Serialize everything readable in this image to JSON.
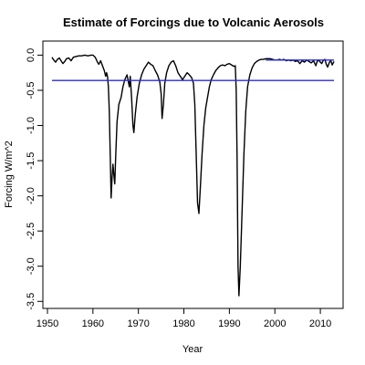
{
  "chart_data": {
    "type": "line",
    "title": "Estimate of Forcings due to Volcanic Aerosols",
    "xlabel": "Year",
    "ylabel": "Forcing W/m^2",
    "xlim": [
      1949,
      2015
    ],
    "ylim": [
      -3.6,
      0.2
    ],
    "x_ticks": [
      1950,
      1960,
      1970,
      1980,
      1990,
      2000,
      2010
    ],
    "y_ticks": [
      0.0,
      -0.5,
      -1.0,
      -1.5,
      -2.0,
      -2.5,
      -3.0,
      -3.5
    ],
    "y_tick_labels": [
      "0.0",
      "-0.5",
      "-1.0",
      "-1.5",
      "-2.0",
      "-2.5",
      "-3.0",
      "-3.5"
    ],
    "grid": false,
    "legend": "none",
    "series": [
      {
        "color": "#000000",
        "style": "solid",
        "points": [
          [
            1951.0,
            -0.03
          ],
          [
            1951.4,
            -0.07
          ],
          [
            1951.8,
            -0.1
          ],
          [
            1952.2,
            -0.06
          ],
          [
            1952.6,
            -0.04
          ],
          [
            1953.0,
            -0.08
          ],
          [
            1953.4,
            -0.12
          ],
          [
            1953.8,
            -0.09
          ],
          [
            1954.2,
            -0.05
          ],
          [
            1954.7,
            -0.04
          ],
          [
            1955.2,
            -0.08
          ],
          [
            1955.7,
            -0.03
          ],
          [
            1956.3,
            -0.02
          ],
          [
            1956.9,
            -0.01
          ],
          [
            1957.5,
            -0.01
          ],
          [
            1958.2,
            0.0
          ],
          [
            1958.9,
            -0.01
          ],
          [
            1959.6,
            0.0
          ],
          [
            1960.0,
            0.0
          ],
          [
            1960.5,
            -0.03
          ],
          [
            1961.0,
            -0.1
          ],
          [
            1961.3,
            -0.13
          ],
          [
            1961.7,
            -0.08
          ],
          [
            1962.1,
            -0.15
          ],
          [
            1962.5,
            -0.22
          ],
          [
            1962.8,
            -0.3
          ],
          [
            1963.0,
            -0.25
          ],
          [
            1963.2,
            -0.3
          ],
          [
            1963.4,
            -0.45
          ],
          [
            1963.6,
            -0.8
          ],
          [
            1963.8,
            -1.4
          ],
          [
            1964.0,
            -2.03
          ],
          [
            1964.2,
            -1.75
          ],
          [
            1964.4,
            -1.55
          ],
          [
            1964.6,
            -1.7
          ],
          [
            1964.8,
            -1.83
          ],
          [
            1965.0,
            -1.45
          ],
          [
            1965.3,
            -0.95
          ],
          [
            1965.7,
            -0.7
          ],
          [
            1966.2,
            -0.6
          ],
          [
            1966.6,
            -0.45
          ],
          [
            1967.0,
            -0.35
          ],
          [
            1967.5,
            -0.28
          ],
          [
            1967.8,
            -0.38
          ],
          [
            1968.0,
            -0.45
          ],
          [
            1968.2,
            -0.3
          ],
          [
            1968.5,
            -0.6
          ],
          [
            1968.8,
            -1.0
          ],
          [
            1969.0,
            -1.1
          ],
          [
            1969.3,
            -0.85
          ],
          [
            1969.7,
            -0.6
          ],
          [
            1970.2,
            -0.4
          ],
          [
            1970.7,
            -0.28
          ],
          [
            1971.2,
            -0.2
          ],
          [
            1971.7,
            -0.15
          ],
          [
            1972.2,
            -0.1
          ],
          [
            1972.7,
            -0.13
          ],
          [
            1973.2,
            -0.15
          ],
          [
            1973.7,
            -0.22
          ],
          [
            1974.2,
            -0.28
          ],
          [
            1974.7,
            -0.38
          ],
          [
            1975.0,
            -0.55
          ],
          [
            1975.2,
            -0.9
          ],
          [
            1975.5,
            -0.7
          ],
          [
            1975.8,
            -0.4
          ],
          [
            1976.2,
            -0.25
          ],
          [
            1976.7,
            -0.15
          ],
          [
            1977.2,
            -0.1
          ],
          [
            1977.7,
            -0.08
          ],
          [
            1978.2,
            -0.15
          ],
          [
            1978.7,
            -0.25
          ],
          [
            1979.2,
            -0.3
          ],
          [
            1979.7,
            -0.35
          ],
          [
            1980.2,
            -0.3
          ],
          [
            1980.7,
            -0.25
          ],
          [
            1981.2,
            -0.28
          ],
          [
            1981.7,
            -0.32
          ],
          [
            1982.1,
            -0.4
          ],
          [
            1982.4,
            -0.7
          ],
          [
            1982.7,
            -1.4
          ],
          [
            1983.0,
            -2.1
          ],
          [
            1983.3,
            -2.25
          ],
          [
            1983.6,
            -1.9
          ],
          [
            1984.0,
            -1.4
          ],
          [
            1984.4,
            -1.0
          ],
          [
            1984.8,
            -0.75
          ],
          [
            1985.2,
            -0.6
          ],
          [
            1985.6,
            -0.45
          ],
          [
            1986.0,
            -0.35
          ],
          [
            1986.5,
            -0.28
          ],
          [
            1987.0,
            -0.22
          ],
          [
            1987.5,
            -0.18
          ],
          [
            1988.0,
            -0.15
          ],
          [
            1988.5,
            -0.14
          ],
          [
            1989.0,
            -0.15
          ],
          [
            1989.5,
            -0.13
          ],
          [
            1990.0,
            -0.12
          ],
          [
            1990.5,
            -0.14
          ],
          [
            1991.0,
            -0.16
          ],
          [
            1991.3,
            -0.15
          ],
          [
            1991.5,
            -0.5
          ],
          [
            1991.7,
            -1.5
          ],
          [
            1991.9,
            -3.0
          ],
          [
            1992.1,
            -3.42
          ],
          [
            1992.4,
            -3.0
          ],
          [
            1992.8,
            -2.2
          ],
          [
            1993.2,
            -1.4
          ],
          [
            1993.6,
            -0.8
          ],
          [
            1994.0,
            -0.45
          ],
          [
            1994.5,
            -0.28
          ],
          [
            1995.0,
            -0.18
          ],
          [
            1995.5,
            -0.12
          ],
          [
            1996.0,
            -0.09
          ],
          [
            1996.5,
            -0.07
          ],
          [
            1997.0,
            -0.06
          ],
          [
            1997.5,
            -0.06
          ],
          [
            1998.0,
            -0.05
          ],
          [
            1998.5,
            -0.05
          ],
          [
            1999.0,
            -0.05
          ],
          [
            1999.5,
            -0.06
          ],
          [
            2000.0,
            -0.07
          ],
          [
            2000.5,
            -0.07
          ],
          [
            2001.0,
            -0.06
          ],
          [
            2001.5,
            -0.07
          ],
          [
            2002.0,
            -0.06
          ],
          [
            2002.5,
            -0.08
          ],
          [
            2003.0,
            -0.07
          ],
          [
            2003.5,
            -0.08
          ],
          [
            2004.0,
            -0.07
          ],
          [
            2004.5,
            -0.09
          ],
          [
            2005.0,
            -0.08
          ],
          [
            2005.5,
            -0.12
          ],
          [
            2006.0,
            -0.08
          ],
          [
            2006.5,
            -0.1
          ],
          [
            2007.0,
            -0.07
          ],
          [
            2007.5,
            -0.09
          ],
          [
            2008.0,
            -0.11
          ],
          [
            2008.5,
            -0.08
          ],
          [
            2009.0,
            -0.15
          ],
          [
            2009.3,
            -0.09
          ],
          [
            2009.6,
            -0.07
          ],
          [
            2010.0,
            -0.1
          ],
          [
            2010.3,
            -0.12
          ],
          [
            2010.6,
            -0.08
          ],
          [
            2011.0,
            -0.06
          ],
          [
            2011.3,
            -0.13
          ],
          [
            2011.6,
            -0.17
          ],
          [
            2012.0,
            -0.1
          ],
          [
            2012.3,
            -0.08
          ],
          [
            2012.6,
            -0.14
          ],
          [
            2013.0,
            -0.09
          ]
        ]
      },
      {
        "color": "#2b2be0",
        "style": "solid",
        "points": [
          [
            1951.0,
            -0.36
          ],
          [
            2013.0,
            -0.36
          ]
        ]
      },
      {
        "color": "#2b2be0",
        "style": "solid",
        "points": [
          [
            1998.0,
            -0.07
          ],
          [
            2013.0,
            -0.07
          ]
        ]
      }
    ]
  }
}
